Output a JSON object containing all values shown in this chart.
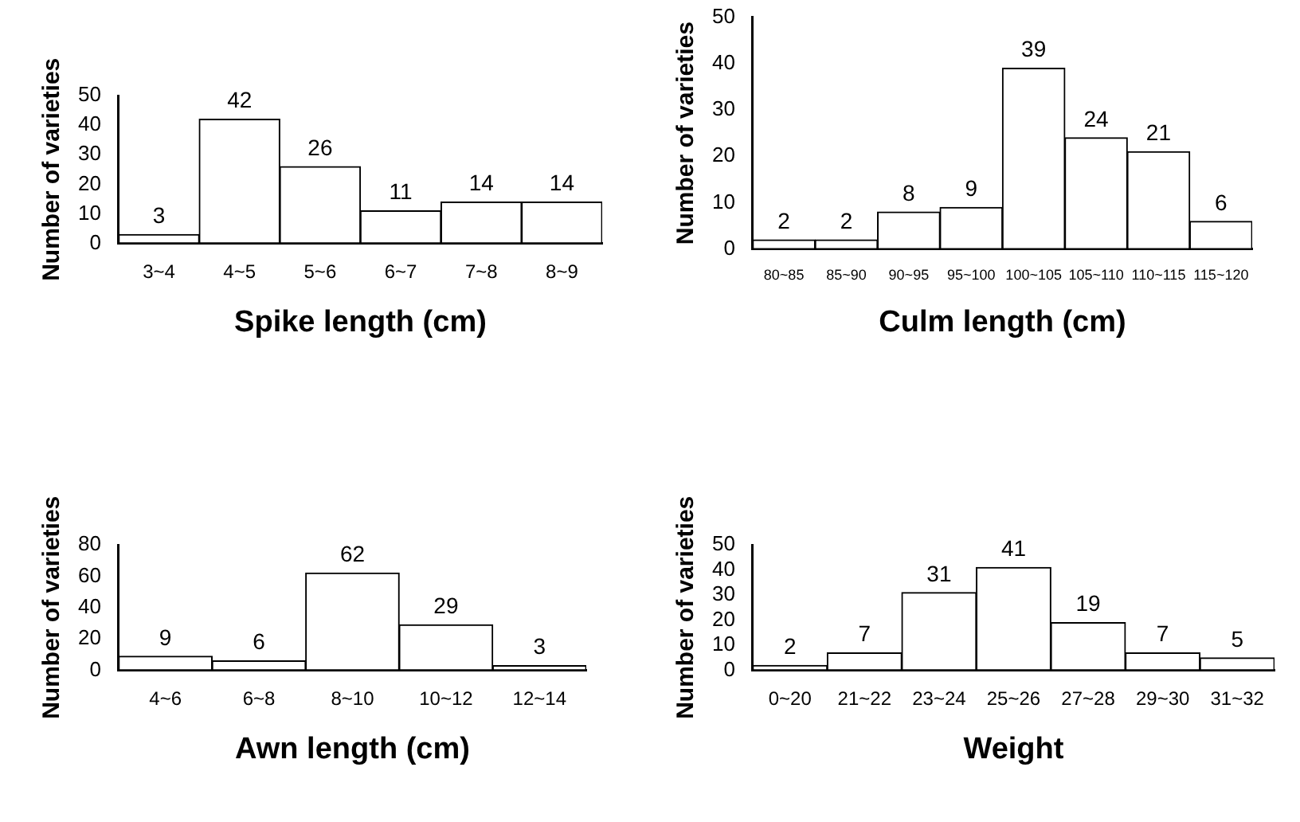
{
  "chart_data": [
    {
      "type": "bar",
      "xlabel": "Spike length (cm)",
      "ylabel": "Number of varieties",
      "categories": [
        "3~4",
        "4~5",
        "5~6",
        "6~7",
        "7~8",
        "8~9"
      ],
      "values": [
        3,
        42,
        26,
        11,
        14,
        14
      ],
      "color": "#ffffff",
      "ylim": [
        0,
        50
      ],
      "yticks": [
        0,
        10,
        20,
        30,
        40,
        50
      ],
      "data_labels": true,
      "grid": false,
      "legend": false
    },
    {
      "type": "bar",
      "xlabel": "Culm length (cm)",
      "ylabel": "Number of varieties",
      "categories": [
        "80~85",
        "85~90",
        "90~95",
        "95~100",
        "100~105",
        "105~110",
        "110~115",
        "115~120"
      ],
      "values": [
        2,
        2,
        8,
        9,
        39,
        24,
        21,
        6
      ],
      "color": "#ffffff",
      "ylim": [
        0,
        50
      ],
      "yticks": [
        0,
        10,
        20,
        30,
        40,
        50
      ],
      "data_labels": true,
      "grid": false,
      "legend": false
    },
    {
      "type": "bar",
      "xlabel": "Awn length (cm)",
      "ylabel": "Number of varieties",
      "categories": [
        "4~6",
        "6~8",
        "8~10",
        "10~12",
        "12~14"
      ],
      "values": [
        9,
        6,
        62,
        29,
        3
      ],
      "color": "#ffffff",
      "ylim": [
        0,
        80
      ],
      "yticks": [
        0,
        20,
        40,
        60,
        80
      ],
      "data_labels": true,
      "grid": false,
      "legend": false
    },
    {
      "type": "bar",
      "xlabel": "Weight",
      "ylabel": "Number of varieties",
      "categories": [
        "0~20",
        "21~22",
        "23~24",
        "25~26",
        "27~28",
        "29~30",
        "31~32"
      ],
      "values": [
        2,
        7,
        31,
        41,
        19,
        7,
        5
      ],
      "color": "#ffffff",
      "ylim": [
        0,
        50
      ],
      "yticks": [
        0,
        10,
        20,
        30,
        40,
        50
      ],
      "data_labels": true,
      "grid": false,
      "legend": false
    }
  ]
}
